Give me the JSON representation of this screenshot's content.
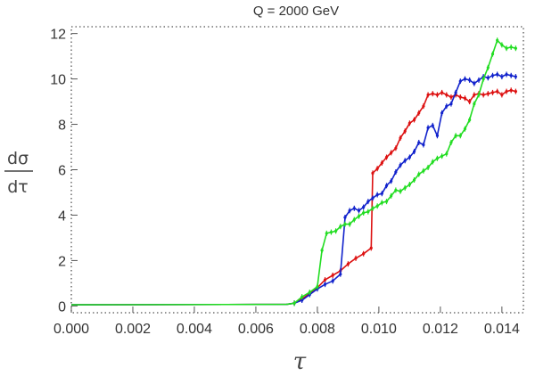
{
  "chart_data": {
    "type": "line",
    "title": "Q = 2000 GeV",
    "xlabel": "τ",
    "ylabel_top": "dσ",
    "ylabel_bottom": "dτ",
    "xlim": [
      0,
      0.0147
    ],
    "ylim": [
      -0.3,
      12.3
    ],
    "xticks": [
      0,
      0.002,
      0.004,
      0.006,
      0.008,
      0.01,
      0.012,
      0.014
    ],
    "xtick_labels": [
      "0.000",
      "0.002",
      "0.004",
      "0.006",
      "0.008",
      "0.010",
      "0.012",
      "0.014"
    ],
    "yticks": [
      0,
      2,
      4,
      6,
      8,
      10,
      12
    ],
    "ytick_labels": [
      "0",
      "2",
      "4",
      "6",
      "8",
      "10",
      "12"
    ],
    "frame": "dotted-box",
    "series": [
      {
        "color": "#dd1111",
        "x": [
          0,
          0.007,
          0.00725,
          0.0075,
          0.00775,
          0.008,
          0.00825,
          0.0085,
          0.00875,
          0.009,
          0.00925,
          0.0095,
          0.00975,
          0.0098,
          0.00995,
          0.0101,
          0.01025,
          0.0104,
          0.01055,
          0.0107,
          0.01085,
          0.011,
          0.01115,
          0.0113,
          0.01145,
          0.0116,
          0.01175,
          0.0119,
          0.01205,
          0.0122,
          0.01235,
          0.0125,
          0.01265,
          0.0128,
          0.01295,
          0.0131,
          0.01325,
          0.0134,
          0.01355,
          0.0137,
          0.01385,
          0.014,
          0.01415,
          0.0143,
          0.01445
        ],
        "y": [
          0.05,
          0.07,
          0.12,
          0.3,
          0.55,
          0.8,
          1.15,
          1.35,
          1.55,
          1.85,
          2.1,
          2.3,
          2.55,
          5.85,
          6.05,
          6.3,
          6.55,
          6.75,
          6.95,
          7.4,
          7.7,
          8.05,
          8.2,
          8.5,
          8.8,
          9.3,
          9.35,
          9.3,
          9.4,
          9.3,
          9.2,
          9.3,
          9.2,
          9.15,
          9.0,
          9.3,
          9.35,
          9.3,
          9.35,
          9.4,
          9.45,
          9.3,
          9.45,
          9.5,
          9.45
        ]
      },
      {
        "color": "#1122cc",
        "x": [
          0,
          0.007,
          0.00725,
          0.0075,
          0.00775,
          0.008,
          0.00825,
          0.0085,
          0.00875,
          0.0089,
          0.00905,
          0.0092,
          0.00935,
          0.0095,
          0.00965,
          0.0098,
          0.00995,
          0.0101,
          0.01025,
          0.0104,
          0.01055,
          0.0107,
          0.01085,
          0.011,
          0.01115,
          0.0113,
          0.01145,
          0.0116,
          0.01175,
          0.0119,
          0.01205,
          0.0122,
          0.01235,
          0.0125,
          0.01265,
          0.0128,
          0.01295,
          0.0131,
          0.01325,
          0.0134,
          0.01355,
          0.0137,
          0.01385,
          0.014,
          0.01415,
          0.0143,
          0.01445
        ],
        "y": [
          0.05,
          0.07,
          0.12,
          0.25,
          0.5,
          0.75,
          0.95,
          1.1,
          1.4,
          3.9,
          4.2,
          4.3,
          4.2,
          4.35,
          4.6,
          4.75,
          4.9,
          4.95,
          5.3,
          5.5,
          5.9,
          6.2,
          6.4,
          6.55,
          6.8,
          7.2,
          7.1,
          7.85,
          7.95,
          7.5,
          8.5,
          8.8,
          8.9,
          9.4,
          9.9,
          10.0,
          9.95,
          9.8,
          9.95,
          10.1,
          10.05,
          10.15,
          10.2,
          10.1,
          10.2,
          10.15,
          10.1
        ]
      },
      {
        "color": "#22dd22",
        "x": [
          0,
          0.007,
          0.00725,
          0.0075,
          0.00775,
          0.008,
          0.00815,
          0.0083,
          0.00845,
          0.0086,
          0.00875,
          0.0089,
          0.00905,
          0.0092,
          0.00935,
          0.0095,
          0.00965,
          0.0098,
          0.00995,
          0.0101,
          0.01025,
          0.0104,
          0.01055,
          0.0107,
          0.01085,
          0.011,
          0.01115,
          0.0113,
          0.01145,
          0.0116,
          0.01175,
          0.0119,
          0.01205,
          0.0122,
          0.01235,
          0.0125,
          0.01265,
          0.0128,
          0.01295,
          0.0131,
          0.01325,
          0.0134,
          0.01355,
          0.0137,
          0.01385,
          0.014,
          0.01415,
          0.0143,
          0.01445
        ],
        "y": [
          0.05,
          0.07,
          0.12,
          0.4,
          0.6,
          0.85,
          2.45,
          3.2,
          3.25,
          3.3,
          3.5,
          3.6,
          3.6,
          3.8,
          3.95,
          4.1,
          4.15,
          4.3,
          4.4,
          4.55,
          4.6,
          4.85,
          5.1,
          5.05,
          5.2,
          5.35,
          5.55,
          5.8,
          5.95,
          6.1,
          6.35,
          6.5,
          6.6,
          6.7,
          7.2,
          7.5,
          7.5,
          7.8,
          8.2,
          8.9,
          9.3,
          10.0,
          10.5,
          11.1,
          11.7,
          11.5,
          11.35,
          11.4,
          11.35
        ]
      }
    ]
  }
}
